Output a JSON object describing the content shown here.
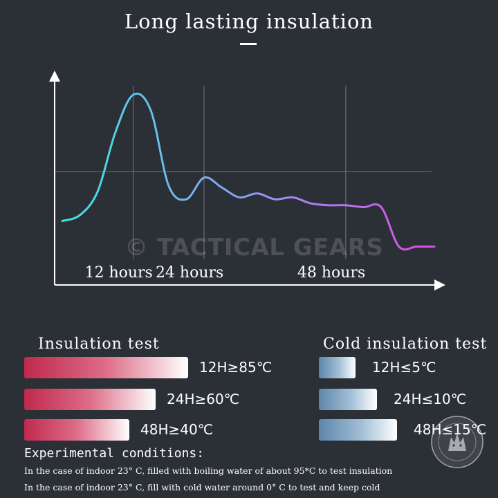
{
  "header": {
    "title": "Long lasting insulation"
  },
  "chart_data": {
    "type": "line",
    "title": "Long lasting insulation",
    "xlabel": "",
    "ylabel": "",
    "tick_labels": [
      "12 hours",
      "24 hours",
      "48 hours"
    ],
    "tick_positions": [
      12,
      24,
      48
    ],
    "xlim": [
      0,
      63
    ],
    "ylim": [
      0,
      100
    ],
    "grid": true,
    "reference_line_y": 55,
    "series": [
      {
        "x": [
          0,
          3,
          6,
          9,
          12,
          15,
          18,
          21,
          24,
          27,
          30,
          33,
          36,
          39,
          42,
          45,
          48,
          51,
          54,
          57,
          60,
          63
        ],
        "y": [
          30,
          33,
          45,
          75,
          94,
          86,
          48,
          41,
          52,
          47,
          42,
          44,
          41,
          42,
          39,
          38,
          38,
          37,
          37,
          17,
          17,
          17
        ]
      }
    ],
    "line_gradient": [
      "#3fe3df",
      "#8f9cf0",
      "#df4ae8"
    ]
  },
  "watermark": "© TACTICAL GEARS",
  "insulation": {
    "title": "Insulation test",
    "items": [
      {
        "label": "12H≥85℃",
        "level": 1.0
      },
      {
        "label": "24H≥60℃",
        "level": 0.8
      },
      {
        "label": "48H≥40℃",
        "level": 0.64
      }
    ]
  },
  "cold_insulation": {
    "title": "Cold insulation test",
    "items": [
      {
        "label": "12H≤5℃",
        "level": 0.47
      },
      {
        "label": "24H≤10℃",
        "level": 0.74
      },
      {
        "label": "48H≤15℃",
        "level": 1.0
      }
    ]
  },
  "conditions": {
    "title": "Experimental conditions:",
    "lines": [
      "In the case of indoor 23° C, filled with boiling water of about 95*C to test insulation",
      "In the case of indoor 23° C, fill with cold water around 0° C to test and keep cold"
    ]
  },
  "logo": {
    "text": "TACTICAL GEARS",
    "icon": "wolf-badge-icon"
  }
}
